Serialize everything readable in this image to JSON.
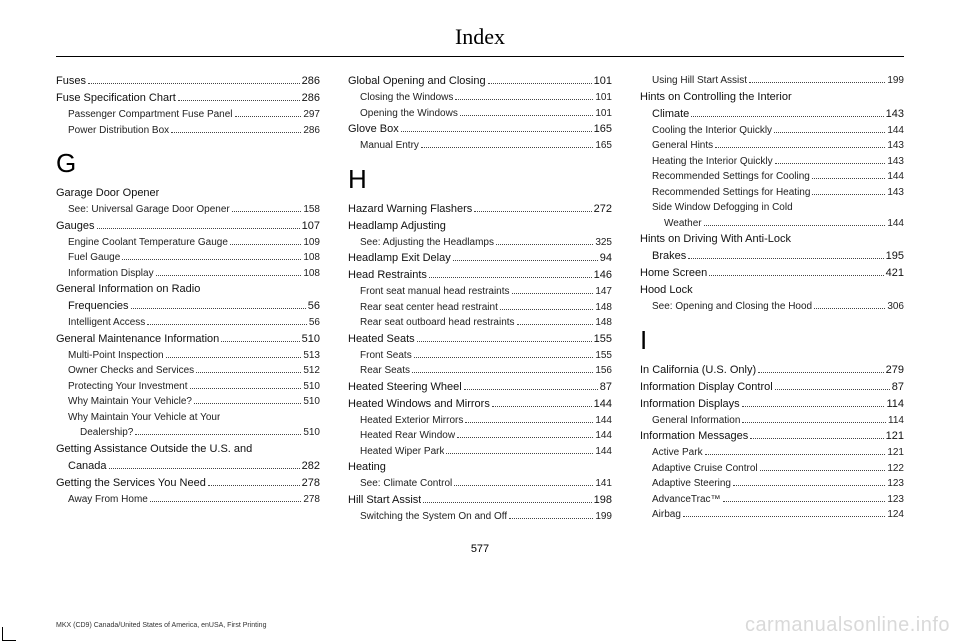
{
  "title": "Index",
  "pageNumber": "577",
  "footer": "MKX (CD9) Canada/United States of America, enUSA, First Printing",
  "watermark": "carmanualsonline.info",
  "columns": [
    [
      {
        "type": "entry",
        "label": "Fuses",
        "pg": "286"
      },
      {
        "type": "entry",
        "label": "Fuse Specification Chart",
        "pg": "286"
      },
      {
        "type": "sub",
        "label": "Passenger Compartment Fuse Panel",
        "pg": "297"
      },
      {
        "type": "sub",
        "label": "Power Distribution Box",
        "pg": "286"
      },
      {
        "type": "letter",
        "label": "G"
      },
      {
        "type": "entry",
        "label": "Garage Door Opener",
        "noPg": true
      },
      {
        "type": "sub",
        "label": "See: Universal Garage Door Opener",
        "pg": "158"
      },
      {
        "type": "entry",
        "label": "Gauges",
        "pg": "107"
      },
      {
        "type": "sub",
        "label": "Engine Coolant Temperature Gauge",
        "pg": "109"
      },
      {
        "type": "sub",
        "label": "Fuel Gauge",
        "pg": "108"
      },
      {
        "type": "sub",
        "label": "Information Display",
        "pg": "108"
      },
      {
        "type": "entry",
        "label": "General Information on Radio",
        "noPg": true
      },
      {
        "type": "entry",
        "label": "Frequencies",
        "pg": "56",
        "cont": true
      },
      {
        "type": "sub",
        "label": "Intelligent Access",
        "pg": "56"
      },
      {
        "type": "entry",
        "label": "General Maintenance Information",
        "pg": "510"
      },
      {
        "type": "sub",
        "label": "Multi-Point Inspection",
        "pg": "513"
      },
      {
        "type": "sub",
        "label": "Owner Checks and Services",
        "pg": "512"
      },
      {
        "type": "sub",
        "label": "Protecting Your Investment",
        "pg": "510"
      },
      {
        "type": "sub",
        "label": "Why Maintain Your Vehicle?",
        "pg": "510"
      },
      {
        "type": "sub",
        "label": "Why Maintain Your Vehicle at Your",
        "noPg": true
      },
      {
        "type": "sub2",
        "label": "Dealership?",
        "pg": "510"
      },
      {
        "type": "entry",
        "label": "Getting Assistance Outside the U.S. and",
        "noPg": true
      },
      {
        "type": "entry",
        "label": "Canada",
        "pg": "282",
        "cont": true
      },
      {
        "type": "entry",
        "label": "Getting the Services You Need",
        "pg": "278"
      },
      {
        "type": "sub",
        "label": "Away From Home",
        "pg": "278"
      }
    ],
    [
      {
        "type": "entry",
        "label": "Global Opening and Closing",
        "pg": "101"
      },
      {
        "type": "sub",
        "label": "Closing the Windows",
        "pg": "101"
      },
      {
        "type": "sub",
        "label": "Opening the Windows",
        "pg": "101"
      },
      {
        "type": "entry",
        "label": "Glove Box",
        "pg": "165"
      },
      {
        "type": "sub",
        "label": "Manual Entry",
        "pg": "165"
      },
      {
        "type": "letter",
        "label": "H"
      },
      {
        "type": "entry",
        "label": "Hazard Warning Flashers",
        "pg": "272"
      },
      {
        "type": "entry",
        "label": "Headlamp Adjusting",
        "noPg": true
      },
      {
        "type": "sub",
        "label": "See: Adjusting the Headlamps",
        "pg": "325"
      },
      {
        "type": "entry",
        "label": "Headlamp Exit Delay",
        "pg": "94"
      },
      {
        "type": "entry",
        "label": "Head Restraints",
        "pg": "146"
      },
      {
        "type": "sub",
        "label": "Front seat manual head restraints",
        "pg": "147"
      },
      {
        "type": "sub",
        "label": "Rear seat center head restraint",
        "pg": "148"
      },
      {
        "type": "sub",
        "label": "Rear seat outboard head restraints",
        "pg": "148"
      },
      {
        "type": "entry",
        "label": "Heated Seats",
        "pg": "155"
      },
      {
        "type": "sub",
        "label": "Front Seats",
        "pg": "155"
      },
      {
        "type": "sub",
        "label": "Rear Seats",
        "pg": "156"
      },
      {
        "type": "entry",
        "label": "Heated Steering Wheel",
        "pg": "87"
      },
      {
        "type": "entry",
        "label": "Heated Windows and Mirrors",
        "pg": "144"
      },
      {
        "type": "sub",
        "label": "Heated Exterior Mirrors",
        "pg": "144"
      },
      {
        "type": "sub",
        "label": "Heated Rear Window",
        "pg": "144"
      },
      {
        "type": "sub",
        "label": "Heated Wiper Park",
        "pg": "144"
      },
      {
        "type": "entry",
        "label": "Heating",
        "noPg": true
      },
      {
        "type": "sub",
        "label": "See: Climate Control",
        "pg": "141"
      },
      {
        "type": "entry",
        "label": "Hill Start Assist",
        "pg": "198"
      },
      {
        "type": "sub",
        "label": "Switching the System On and Off",
        "pg": "199"
      }
    ],
    [
      {
        "type": "sub",
        "label": "Using Hill Start Assist",
        "pg": "199"
      },
      {
        "type": "entry",
        "label": "Hints on Controlling the Interior",
        "noPg": true
      },
      {
        "type": "entry",
        "label": "Climate",
        "pg": "143",
        "cont": true
      },
      {
        "type": "sub",
        "label": "Cooling the Interior Quickly",
        "pg": "144"
      },
      {
        "type": "sub",
        "label": "General Hints",
        "pg": "143"
      },
      {
        "type": "sub",
        "label": "Heating the Interior Quickly",
        "pg": "143"
      },
      {
        "type": "sub",
        "label": "Recommended Settings for Cooling ",
        "pg": "144"
      },
      {
        "type": "sub",
        "label": "Recommended Settings for Heating",
        "pg": "143"
      },
      {
        "type": "sub",
        "label": "Side Window Defogging in Cold",
        "noPg": true
      },
      {
        "type": "sub2",
        "label": "Weather",
        "pg": "144"
      },
      {
        "type": "entry",
        "label": "Hints on Driving With Anti-Lock",
        "noPg": true
      },
      {
        "type": "entry",
        "label": "Brakes",
        "pg": "195",
        "cont": true
      },
      {
        "type": "entry",
        "label": "Home Screen",
        "pg": "421"
      },
      {
        "type": "entry",
        "label": "Hood Lock",
        "noPg": true
      },
      {
        "type": "sub",
        "label": "See: Opening and Closing the Hood",
        "pg": "306"
      },
      {
        "type": "letter",
        "label": "I"
      },
      {
        "type": "entry",
        "label": "In California (U.S. Only)",
        "pg": "279"
      },
      {
        "type": "entry",
        "label": "Information Display Control",
        "pg": "87"
      },
      {
        "type": "entry",
        "label": "Information Displays",
        "pg": "114"
      },
      {
        "type": "sub",
        "label": "General Information",
        "pg": "114"
      },
      {
        "type": "entry",
        "label": "Information Messages",
        "pg": "121"
      },
      {
        "type": "sub",
        "label": "Active Park",
        "pg": "121"
      },
      {
        "type": "sub",
        "label": "Adaptive Cruise Control",
        "pg": "122"
      },
      {
        "type": "sub",
        "label": "Adaptive Steering",
        "pg": "123"
      },
      {
        "type": "sub",
        "label": "AdvanceTrac™",
        "pg": "123"
      },
      {
        "type": "sub",
        "label": "Airbag",
        "pg": "124"
      }
    ]
  ]
}
